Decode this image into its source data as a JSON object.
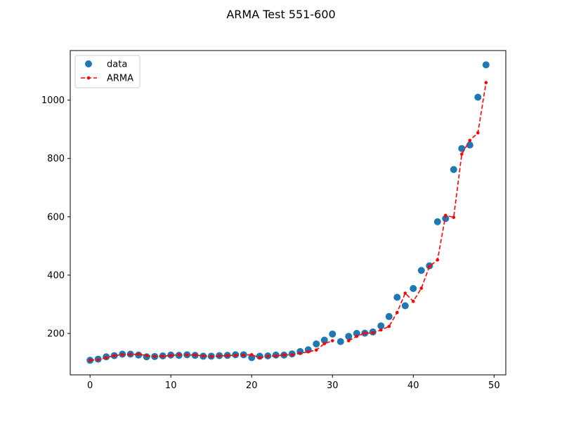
{
  "chart_data": {
    "type": "scatter",
    "title": "ARMA Test 551-600",
    "xlabel": "",
    "ylabel": "",
    "xlim": [
      -2.45,
      51.45
    ],
    "ylim": [
      58,
      1170
    ],
    "xticks": [
      0,
      10,
      20,
      30,
      40,
      50
    ],
    "yticks": [
      200,
      400,
      600,
      800,
      1000
    ],
    "grid": false,
    "legend_position": "top-left",
    "x": [
      0,
      1,
      2,
      3,
      4,
      5,
      6,
      7,
      8,
      9,
      10,
      11,
      12,
      13,
      14,
      15,
      16,
      17,
      18,
      19,
      20,
      21,
      22,
      23,
      24,
      25,
      26,
      27,
      28,
      29,
      30,
      31,
      32,
      33,
      34,
      35,
      36,
      37,
      38,
      39,
      40,
      41,
      42,
      43,
      44,
      45,
      46,
      47,
      48,
      49
    ],
    "series": [
      {
        "name": "data",
        "style": "markers",
        "color": "#1f77b4",
        "values": [
          108,
          112,
          120,
          124,
          129,
          129,
          126,
          120,
          121,
          123,
          126,
          125,
          127,
          125,
          122,
          122,
          124,
          125,
          127,
          127,
          117,
          122,
          123,
          126,
          126,
          130,
          138,
          144,
          164,
          177,
          198,
          172,
          190,
          200,
          201,
          205,
          226,
          258,
          324,
          295,
          354,
          416,
          432,
          583,
          594,
          762,
          834,
          846,
          1010,
          1121
        ]
      },
      {
        "name": "ARMA",
        "style": "dashed-line-dot",
        "color": "#ff0000",
        "values": [
          108,
          110,
          117,
          124,
          127,
          128,
          129,
          124,
          121,
          122,
          124,
          127,
          126,
          126,
          123,
          121,
          123,
          124,
          125,
          126,
          127,
          117,
          122,
          123,
          126,
          127,
          132,
          137,
          143,
          165,
          175,
          null,
          175,
          190,
          201,
          202,
          212,
          224,
          272,
          338,
          310,
          355,
          430,
          452,
          605,
          598,
          815,
          862,
          888,
          1060
        ]
      }
    ]
  }
}
